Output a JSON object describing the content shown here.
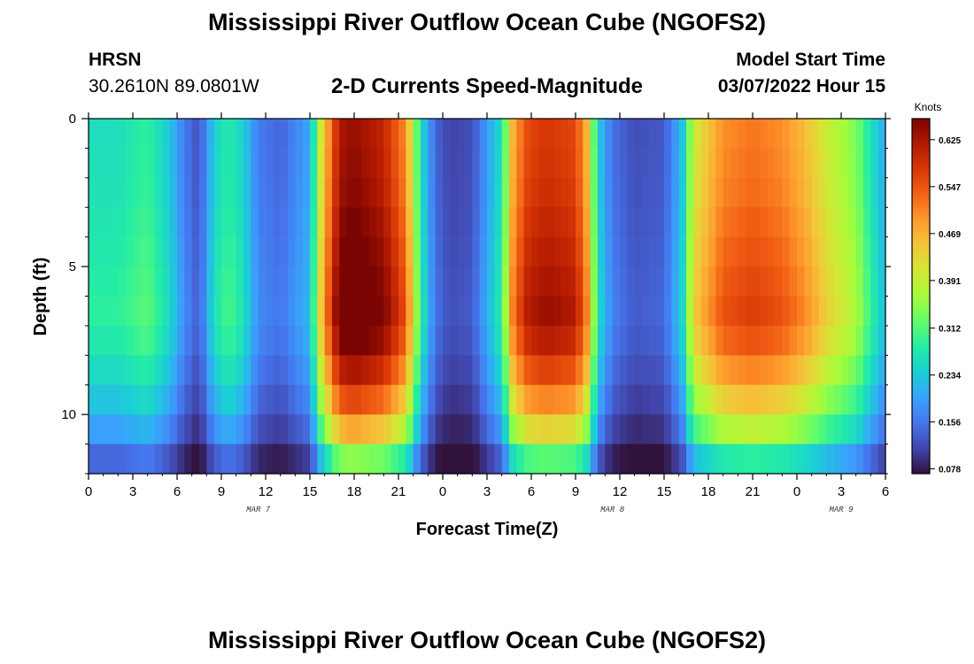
{
  "header": {
    "title": "Mississippi River Outflow Ocean Cube (NGOFS2)",
    "station_code": "HRSN",
    "coordinates": "30.2610N  89.0801W",
    "subtitle": "2-D Currents Speed-Magnitude",
    "model_start_label": "Model Start Time",
    "model_start_value": "03/07/2022 Hour 15"
  },
  "footer": {
    "title": "Mississippi River Outflow Ocean Cube (NGOFS2)"
  },
  "colors": {
    "colormap": [
      "#30123b",
      "#4145ab",
      "#4675ed",
      "#39a2fc",
      "#1bcfd4",
      "#24eca6",
      "#61fc6c",
      "#a4fc3b",
      "#d1e834",
      "#f3c63a",
      "#fe9b2d",
      "#f36315",
      "#d93806",
      "#b11901",
      "#7a0402"
    ]
  },
  "chart_data": {
    "type": "heatmap",
    "title": "2-D Currents Speed-Magnitude",
    "xlabel": "Forecast Time(Z)",
    "ylabel": "Depth (ft)",
    "colorbar_label": "Knots",
    "x_range_hours": [
      0,
      54
    ],
    "y_range_ft": [
      0,
      12
    ],
    "y_inverted": true,
    "x_tick_labels": [
      "0",
      "3",
      "6",
      "9",
      "12",
      "15",
      "18",
      "21",
      "0",
      "3",
      "6",
      "9",
      "12",
      "15",
      "18",
      "21",
      "0",
      "3",
      "6"
    ],
    "x_tick_hours": [
      0,
      3,
      6,
      9,
      12,
      15,
      18,
      21,
      24,
      27,
      30,
      33,
      36,
      39,
      42,
      45,
      48,
      51,
      54
    ],
    "y_tick_labels": [
      "0",
      "5",
      "10"
    ],
    "y_tick_values": [
      0,
      5,
      10
    ],
    "date_labels": [
      {
        "text": "MAR 7",
        "hour": 11.5
      },
      {
        "text": "MAR 8",
        "hour": 35.5
      },
      {
        "text": "MAR 9",
        "hour": 51
      }
    ],
    "colorbar_ticks": [
      0.625,
      0.547,
      0.469,
      0.391,
      0.312,
      0.234,
      0.156,
      0.078
    ],
    "value_range": [
      0.07,
      0.66
    ],
    "time_hours": [
      0,
      2,
      4,
      5.5,
      6.5,
      7.5,
      8.5,
      9.5,
      10.5,
      11.5,
      13,
      15,
      15.8,
      17,
      18,
      20,
      21.5,
      22.5,
      23.5,
      24.5,
      26,
      28,
      28.8,
      29.8,
      31,
      33,
      33.8,
      34.5,
      35.5,
      37,
      39,
      40.2,
      41,
      43,
      45,
      47,
      48.5,
      50,
      52,
      53.5,
      54
    ],
    "depth_rows_ft": [
      0.5,
      1.5,
      2.5,
      3.5,
      4.5,
      5.5,
      6.5,
      7.5,
      8.5,
      9.5,
      10.5,
      11.5
    ],
    "surface_speed_knots": [
      0.26,
      0.26,
      0.29,
      0.23,
      0.16,
      0.12,
      0.24,
      0.28,
      0.24,
      0.16,
      0.14,
      0.2,
      0.42,
      0.62,
      0.64,
      0.6,
      0.5,
      0.26,
      0.14,
      0.11,
      0.12,
      0.26,
      0.48,
      0.56,
      0.58,
      0.56,
      0.46,
      0.24,
      0.15,
      0.12,
      0.13,
      0.22,
      0.4,
      0.5,
      0.52,
      0.5,
      0.46,
      0.4,
      0.34,
      0.23,
      0.2
    ],
    "depth_profile_factor": [
      1.0,
      1.01,
      1.02,
      1.04,
      1.06,
      1.08,
      1.1,
      1.06,
      0.98,
      0.88,
      0.75,
      0.55
    ]
  }
}
